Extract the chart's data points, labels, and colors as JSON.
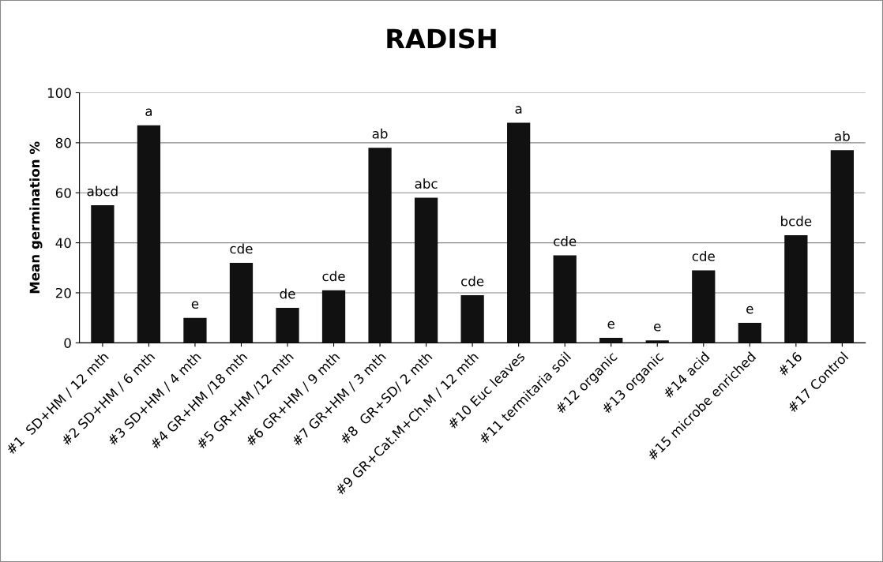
{
  "chart_data": {
    "type": "bar",
    "title": "RADISH",
    "ylabel": "Mean germination %",
    "categories": [
      "#1  SD+HM / 12 mth",
      "#2 SD+HM / 6 mth",
      "#3 SD+HM / 4 mth",
      "#4 GR+HM /18 mth",
      "#5 GR+HM /12 mth",
      "#6 GR+HM / 9 mth",
      "#7 GR+HM / 3 mth",
      "#8  GR+SD/ 2 mth",
      "#9 GR+Cat.M+Ch.M / 12 mth",
      "#10 Euc leaves",
      "#11 termitaria soil",
      "#12 organic",
      "#13 organic",
      "#14 acid",
      "#15 microbe enriched",
      "#16",
      "#17 Control"
    ],
    "values": [
      55,
      87,
      10,
      32,
      14,
      21,
      78,
      58,
      19,
      88,
      35,
      2,
      1,
      29,
      8,
      43,
      77
    ],
    "value_labels": [
      "abcd",
      "a",
      "e",
      "cde",
      "de",
      "cde",
      "ab",
      "abc",
      "cde",
      "a",
      "cde",
      "e",
      "e",
      "cde",
      "e",
      "bcde",
      "ab"
    ],
    "color": "#111111",
    "ylim": [
      0,
      100
    ],
    "yticks": [
      0,
      20,
      40,
      60,
      80,
      100
    ],
    "grid": "y",
    "legend": false
  }
}
